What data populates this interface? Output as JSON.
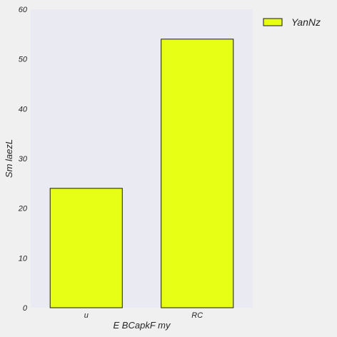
{
  "chart_data": {
    "type": "bar",
    "title": "",
    "xlabel": "E BCapkF my",
    "ylabel": "Sm laezL",
    "categories": [
      "u",
      "RC"
    ],
    "series": [
      {
        "name": "YanNz",
        "values": [
          24,
          54
        ],
        "color": "#e6ff14",
        "edge_color": "#1a1a1a"
      }
    ],
    "ylim": [
      0,
      60
    ],
    "yticks": [
      0,
      10,
      20,
      30,
      40,
      50,
      60
    ],
    "grid": false,
    "legend_position": "top-right, outside plot",
    "plot_background": "#eaeaf2",
    "figure_background": "#f0f0f0"
  }
}
